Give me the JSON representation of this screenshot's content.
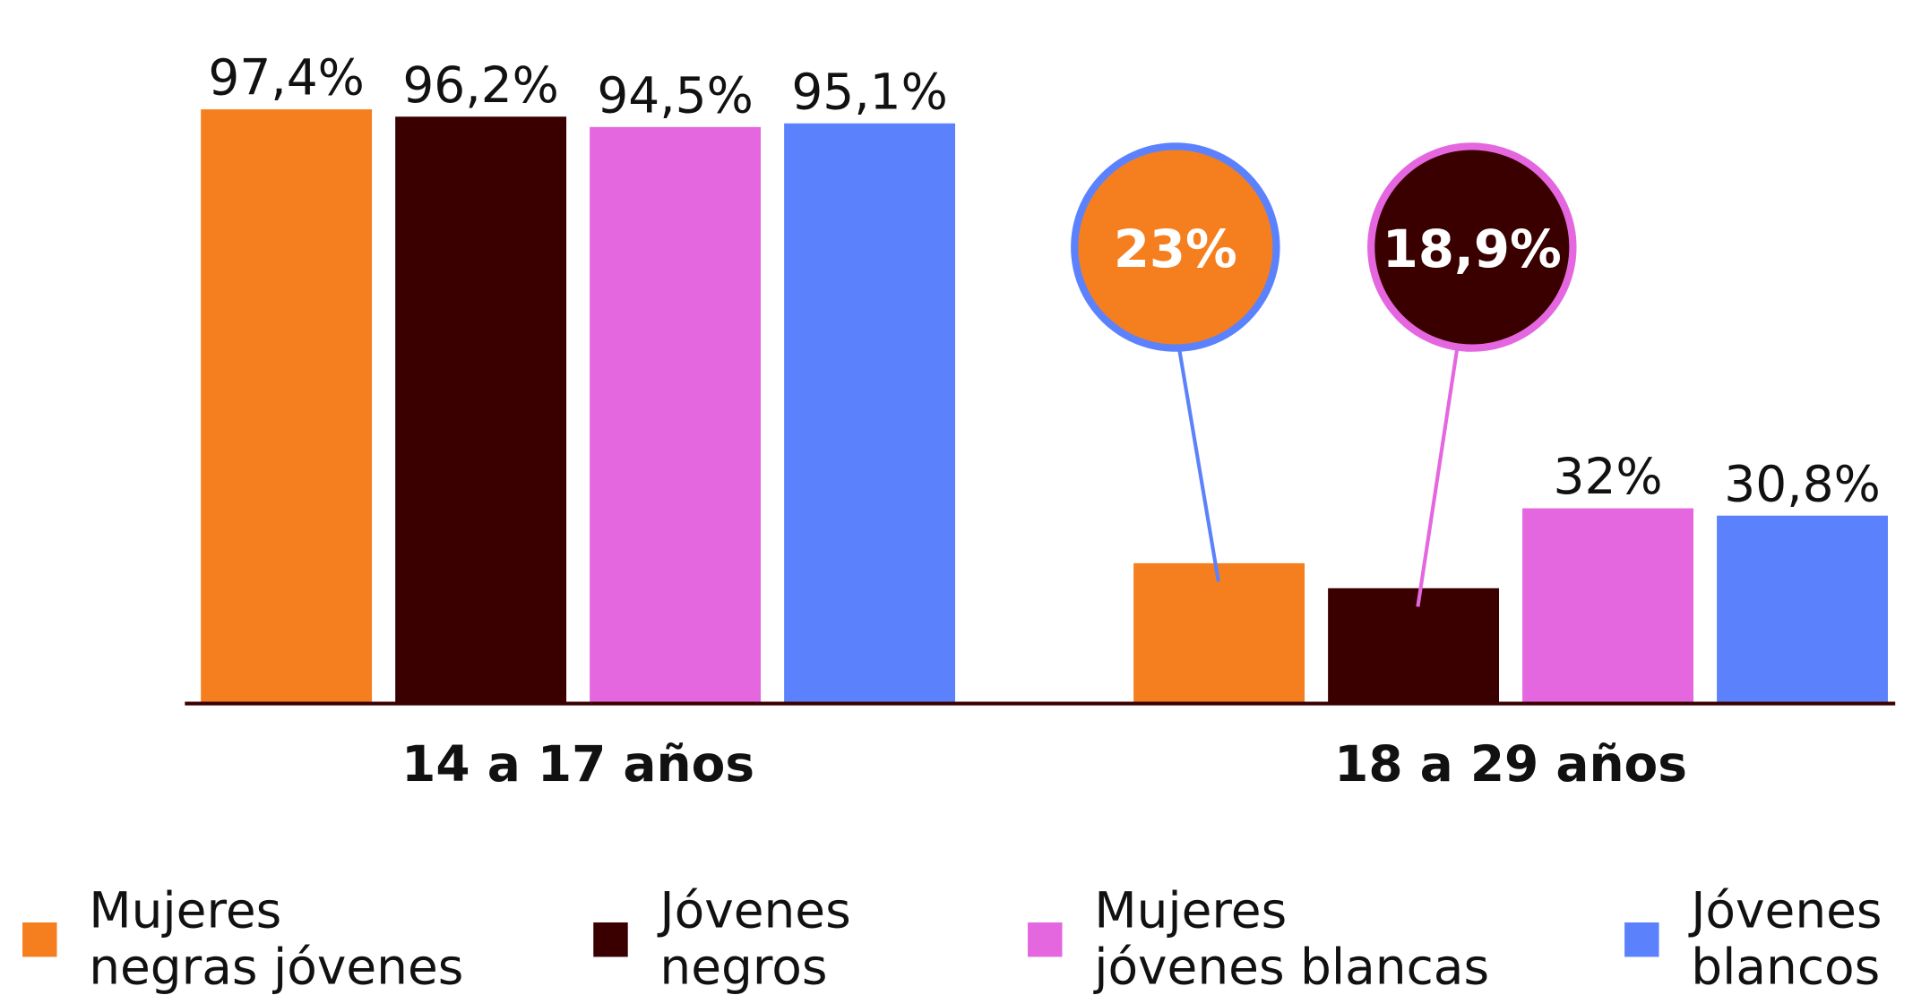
{
  "chart_data": {
    "type": "bar",
    "categories": [
      "14 a 17 años",
      "18 a 29 años"
    ],
    "series": [
      {
        "name": "Mujeres negras jóvenes",
        "color": "#f57f1f",
        "values": [
          97.4,
          23
        ],
        "value_labels": [
          "97,4%",
          "23%"
        ]
      },
      {
        "name": "Jóvenes negros",
        "color": "#3a0000",
        "values": [
          96.2,
          18.9
        ],
        "value_labels": [
          "96,2%",
          "18,9%"
        ]
      },
      {
        "name": "Mujeres jóvenes blancas",
        "color": "#e467e0",
        "values": [
          94.5,
          32
        ],
        "value_labels": [
          "94,5%",
          "32%"
        ]
      },
      {
        "name": "Jóvenes blancos",
        "color": "#5b82fc",
        "values": [
          95.1,
          30.8
        ],
        "value_labels": [
          "95,1%",
          "30,8%"
        ]
      }
    ]
  }
}
